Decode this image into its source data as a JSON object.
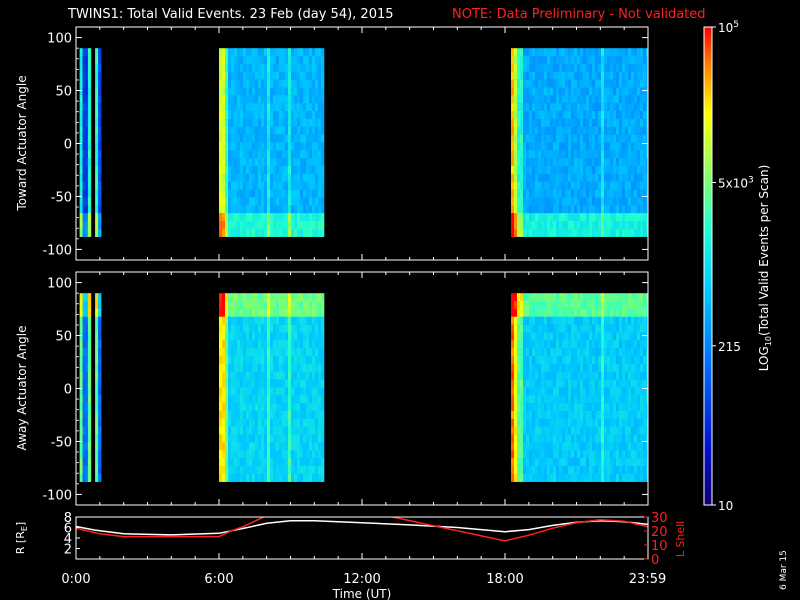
{
  "header": {
    "title": "TWINS1: Total Valid Events. 23 Feb (day  54), 2015",
    "note": "NOTE: Data Preliminary - Not validated",
    "title_color": "#ffffff",
    "note_color": "#ff2020"
  },
  "footer": {
    "date_stamp": "6 Mar 15"
  },
  "chart_data": [
    {
      "type": "heatmap",
      "panel": "top",
      "ylabel": "Toward Actuator Angle",
      "ylim": [
        -110,
        110
      ],
      "y_ticks": [
        "100",
        "50",
        "0",
        "-50",
        "-100"
      ],
      "y_tick_values": [
        100,
        50,
        0,
        -50,
        -100
      ],
      "angle_range": [
        -88,
        90
      ],
      "x_unit": "hours (UT)",
      "xlim": [
        0,
        24
      ],
      "data_blocks": [
        {
          "start": 0.15,
          "end": 0.45,
          "level": 0.2
        },
        {
          "start": 0.5,
          "end": 0.62,
          "level": 0.22
        },
        {
          "start": 0.8,
          "end": 0.95,
          "level": 0.24
        },
        {
          "start": 6.0,
          "end": 10.4,
          "level": 0.42
        },
        {
          "start": 18.25,
          "end": 23.98,
          "level": 0.4
        }
      ]
    },
    {
      "type": "heatmap",
      "panel": "bottom",
      "ylabel": "Away Actuator Angle",
      "ylim": [
        -110,
        110
      ],
      "y_ticks": [
        "100",
        "50",
        "0",
        "-50",
        "-100"
      ],
      "y_tick_values": [
        100,
        50,
        0,
        -50,
        -100
      ],
      "angle_range": [
        -88,
        90
      ],
      "xlim": [
        0,
        24
      ],
      "data_blocks": [
        {
          "start": 0.15,
          "end": 0.45,
          "level": 0.3
        },
        {
          "start": 0.5,
          "end": 0.62,
          "level": 0.3
        },
        {
          "start": 0.8,
          "end": 0.95,
          "level": 0.3
        },
        {
          "start": 6.0,
          "end": 10.4,
          "level": 0.48
        },
        {
          "start": 18.25,
          "end": 23.98,
          "level": 0.46
        }
      ]
    },
    {
      "type": "line",
      "panel": "orbit",
      "ylabel_left": "R [R",
      "ylabel_left_sub": "E",
      "ylabel_left_end": "]",
      "ylabel_right": "L Shell",
      "ylim_left": [
        0,
        8
      ],
      "ylim_right": [
        0,
        30
      ],
      "left_ticks": [
        "8",
        "6",
        "4",
        "2"
      ],
      "left_tick_values": [
        8,
        6,
        4,
        2
      ],
      "right_ticks": [
        "30",
        "20",
        "10",
        "0"
      ],
      "right_tick_values": [
        30,
        20,
        10,
        0
      ],
      "xlabel": "Time (UT)",
      "x_ticks": [
        "0:00",
        "6:00",
        "12:00",
        "18:00",
        "23:59"
      ],
      "x_tick_values": [
        0,
        6,
        12,
        18,
        23.98
      ],
      "series": [
        {
          "axis": "left",
          "color": "#ffffff",
          "x": [
            0,
            0.8,
            2,
            4,
            6,
            7,
            8,
            9,
            10,
            12,
            14,
            16,
            18,
            19,
            20,
            21,
            22,
            23,
            24
          ],
          "y": [
            6.2,
            5.5,
            4.8,
            4.6,
            4.9,
            5.8,
            6.8,
            7.3,
            7.3,
            6.9,
            6.5,
            6.0,
            5.2,
            5.6,
            6.4,
            7.0,
            7.3,
            7.1,
            6.6
          ]
        },
        {
          "axis": "right",
          "color": "#ff2020",
          "x": [
            0,
            1,
            2,
            4,
            6,
            6.5,
            7,
            7.5,
            8,
            8.15,
            12.9,
            13,
            18,
            19,
            20,
            21,
            22,
            23,
            24
          ],
          "y": [
            22,
            18,
            16,
            16,
            16,
            20,
            23,
            27,
            31,
            31,
            31,
            31,
            13,
            17,
            22,
            26,
            28,
            27,
            23
          ]
        }
      ]
    },
    {
      "type": "heatmap",
      "panel": "colorbar",
      "label": "LOG",
      "label_sub": "10",
      "label_end": "(Total Valid Events per Scan)",
      "scale": "log",
      "range": [
        10,
        100000
      ],
      "tick_labels": [
        {
          "value": 100000,
          "base": "10",
          "exp": "5",
          "prefix": ""
        },
        {
          "value": 5000,
          "base": "10",
          "exp": "3",
          "prefix": "5x"
        },
        {
          "value": 215,
          "base": "215",
          "exp": "",
          "prefix": ""
        },
        {
          "value": 10,
          "base": "10",
          "exp": "",
          "prefix": ""
        }
      ]
    }
  ]
}
